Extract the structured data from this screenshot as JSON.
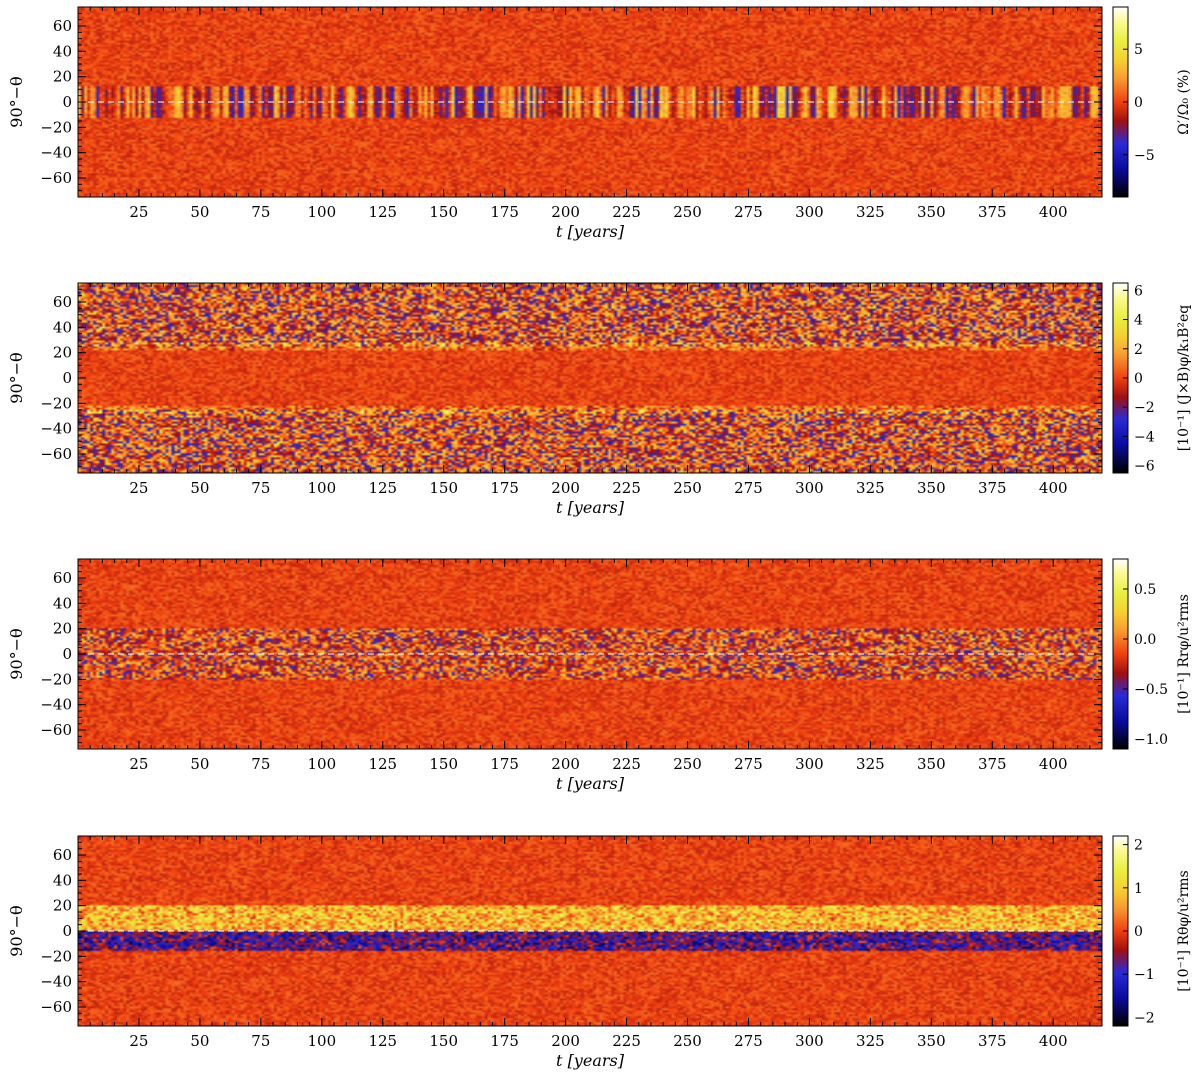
{
  "chart_data": [
    {
      "type": "heatmap",
      "xlabel": "t [years]",
      "ylabel": "90°−θ",
      "colorbar_label": "Ω′/Ω₀ (%)",
      "xlim": [
        0,
        420
      ],
      "ylim": [
        -75,
        75
      ],
      "xticks": [
        25,
        50,
        75,
        100,
        125,
        150,
        175,
        200,
        225,
        250,
        275,
        300,
        325,
        350,
        375,
        400
      ],
      "yticks": [
        -60,
        -40,
        -20,
        0,
        20,
        40,
        60
      ],
      "colorbar_range": [
        -9,
        9
      ],
      "colorbar_ticks": [
        -5,
        0,
        5
      ],
      "colorbar_tick_labels": [
        "−5",
        "0",
        "5"
      ],
      "equator_line": true,
      "background_color": "#f06a28",
      "bands": [
        {
          "lat_min": -12,
          "lat_max": 12,
          "kind": "vertical-stripes",
          "amplitude": 0.55
        }
      ]
    },
    {
      "type": "heatmap",
      "xlabel": "t [years]",
      "ylabel": "90°−θ",
      "colorbar_label": "[10⁻¹] (J×B)φ/k₁B²eq",
      "xlim": [
        0,
        420
      ],
      "ylim": [
        -75,
        75
      ],
      "xticks": [
        25,
        50,
        75,
        100,
        125,
        150,
        175,
        200,
        225,
        250,
        275,
        300,
        325,
        350,
        375,
        400
      ],
      "yticks": [
        -60,
        -40,
        -20,
        0,
        20,
        40,
        60
      ],
      "colorbar_range": [
        -6.5,
        6.5
      ],
      "colorbar_ticks": [
        -6,
        -4,
        -2,
        0,
        2,
        4,
        6
      ],
      "colorbar_tick_labels": [
        "−6",
        "−4",
        "−2",
        "0",
        "2",
        "4",
        "6"
      ],
      "equator_line": false,
      "background_color": "#f2561c",
      "bands": [
        {
          "lat_min": 25,
          "lat_max": 75,
          "kind": "noise",
          "amplitude": 0.7
        },
        {
          "lat_min": -75,
          "lat_max": -25,
          "kind": "noise",
          "amplitude": 0.7
        },
        {
          "lat_min": 22,
          "lat_max": 28,
          "kind": "line",
          "amplitude": 0.5
        },
        {
          "lat_min": -28,
          "lat_max": -22,
          "kind": "line",
          "amplitude": 0.5
        }
      ]
    },
    {
      "type": "heatmap",
      "xlabel": "t [years]",
      "ylabel": "90°−θ",
      "colorbar_label": "[10⁻¹] Rrφ/u²rms",
      "xlim": [
        0,
        420
      ],
      "ylim": [
        -75,
        75
      ],
      "xticks": [
        25,
        50,
        75,
        100,
        125,
        150,
        175,
        200,
        225,
        250,
        275,
        300,
        325,
        350,
        375,
        400
      ],
      "yticks": [
        -60,
        -40,
        -20,
        0,
        20,
        40,
        60
      ],
      "colorbar_range": [
        -1.1,
        0.8
      ],
      "colorbar_ticks": [
        -1.0,
        -0.5,
        0.0,
        0.5
      ],
      "colorbar_tick_labels": [
        "−1.0",
        "−0.5",
        "0.0",
        "0.5"
      ],
      "equator_line": true,
      "background_color": "#f9a24a",
      "bands": [
        {
          "lat_min": -20,
          "lat_max": 20,
          "kind": "noise",
          "amplitude": 0.6
        }
      ]
    },
    {
      "type": "heatmap",
      "xlabel": "t [years]",
      "ylabel": "90°−θ",
      "colorbar_label": "[10⁻¹] Rθφ/u²rms",
      "xlim": [
        0,
        420
      ],
      "ylim": [
        -75,
        75
      ],
      "xticks": [
        25,
        50,
        75,
        100,
        125,
        150,
        175,
        200,
        225,
        250,
        275,
        300,
        325,
        350,
        375,
        400
      ],
      "yticks": [
        -60,
        -40,
        -20,
        0,
        20,
        40,
        60
      ],
      "colorbar_range": [
        -2.2,
        2.2
      ],
      "colorbar_ticks": [
        -2,
        -1,
        0,
        1,
        2
      ],
      "colorbar_tick_labels": [
        "−2",
        "−1",
        "0",
        "1",
        "2"
      ],
      "equator_line": true,
      "background_color": "#f05a20",
      "bands": [
        {
          "lat_min": 0,
          "lat_max": 20,
          "kind": "positive",
          "amplitude": 0.8
        },
        {
          "lat_min": -15,
          "lat_max": 0,
          "kind": "negative",
          "amplitude": 0.8
        }
      ]
    }
  ]
}
